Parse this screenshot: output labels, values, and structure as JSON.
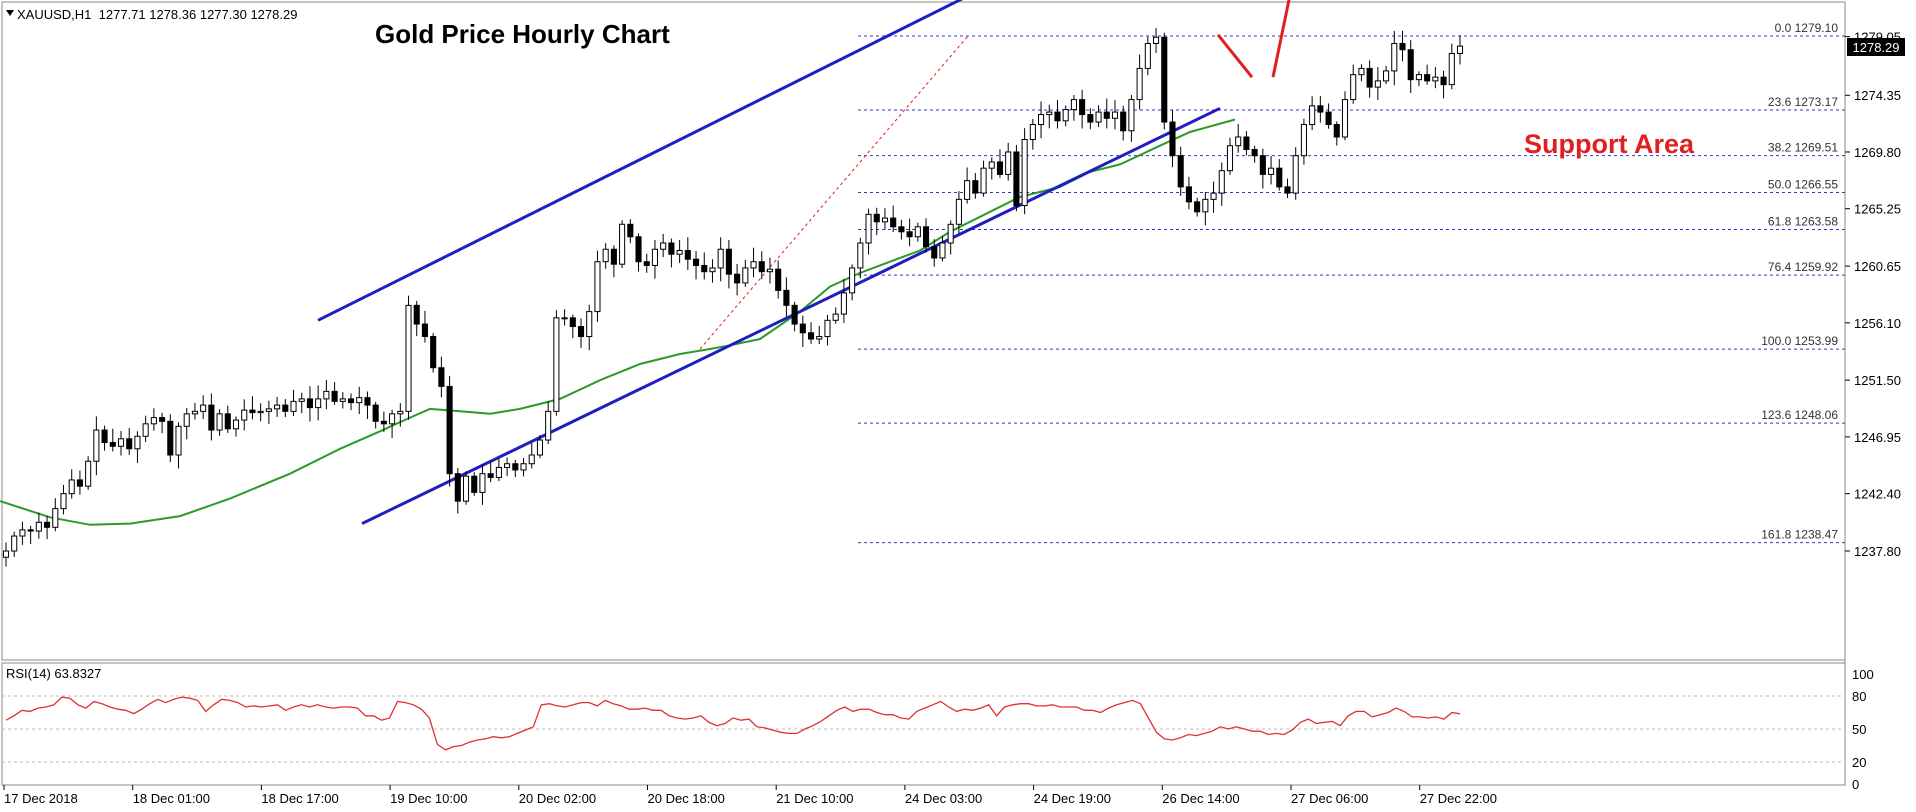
{
  "header": {
    "symbol_line": "XAUUSD,H1  1277.71 1278.36 1277.30 1278.29",
    "title": "Gold Price Hourly Chart",
    "current_price": "1278.29"
  },
  "annotations": {
    "support_label": "Support Area"
  },
  "colors": {
    "candle": "#000000",
    "channel": "#1f1fbf",
    "moving_average": "#2a9a2a",
    "fib_levels": "#3333cc",
    "annotation": "#e02020",
    "rsi": "#e03030",
    "grid": "#bdbdbd"
  },
  "chart_data": [
    {
      "type": "candlestick",
      "title": "Gold Price Hourly Chart",
      "instrument": "XAUUSD,H1",
      "last_ohlc": {
        "open": 1277.71,
        "high": 1278.36,
        "low": 1277.3,
        "close": 1278.29
      },
      "y_ticks": [
        "1279.05",
        "1274.35",
        "1269.80",
        "1265.25",
        "1260.65",
        "1256.10",
        "1251.50",
        "1246.95",
        "1242.40",
        "1237.80"
      ],
      "ylim": [
        1234.0,
        1282.8
      ],
      "x_ticks": [
        "17 Dec 2018",
        "18 Dec 01:00",
        "18 Dec 17:00",
        "19 Dec 10:00",
        "20 Dec 02:00",
        "20 Dec 18:00",
        "21 Dec 10:00",
        "24 Dec 03:00",
        "24 Dec 19:00",
        "26 Dec 14:00",
        "27 Dec 06:00",
        "27 Dec 22:00"
      ],
      "closes": [
        1237.8,
        1239.0,
        1239.5,
        1239.4,
        1240.1,
        1239.7,
        1241.2,
        1242.4,
        1243.5,
        1243.0,
        1245.0,
        1247.5,
        1246.5,
        1246.2,
        1246.8,
        1246.0,
        1247.0,
        1248.0,
        1248.5,
        1248.2,
        1245.5,
        1247.8,
        1248.8,
        1249.0,
        1249.5,
        1247.5,
        1248.8,
        1247.6,
        1248.3,
        1249.1,
        1248.9,
        1249.0,
        1249.2,
        1249.5,
        1249.0,
        1249.8,
        1250.0,
        1249.3,
        1250.0,
        1250.6,
        1249.8,
        1250.0,
        1249.7,
        1250.1,
        1249.5,
        1248.2,
        1248.0,
        1248.8,
        1249.0,
        1257.5,
        1256.0,
        1255.0,
        1252.5,
        1251.0,
        1244.0,
        1241.8,
        1243.8,
        1242.5,
        1244.0,
        1243.7,
        1244.5,
        1244.8,
        1244.3,
        1244.8,
        1245.5,
        1246.7,
        1249.0,
        1256.5,
        1256.5,
        1255.8,
        1255.0,
        1257.0,
        1261.0,
        1262.0,
        1260.8,
        1264.0,
        1263.0,
        1261.0,
        1260.7,
        1262.0,
        1262.5,
        1261.6,
        1261.9,
        1261.2,
        1260.7,
        1260.2,
        1260.5,
        1262.0,
        1260.0,
        1259.3,
        1260.5,
        1261.0,
        1260.2,
        1260.4,
        1258.7,
        1257.5,
        1256.0,
        1255.3,
        1254.8,
        1255.0,
        1256.3,
        1256.8,
        1258.5,
        1260.5,
        1262.5,
        1264.8,
        1264.2,
        1264.5,
        1263.8,
        1263.4,
        1263.0,
        1263.8,
        1262.2,
        1261.3,
        1262.5,
        1264.0,
        1266.0,
        1267.5,
        1266.5,
        1268.5,
        1269.0,
        1268.0,
        1269.8,
        1265.5,
        1270.8,
        1272.0,
        1272.8,
        1273.0,
        1272.3,
        1273.2,
        1274.0,
        1272.8,
        1272.2,
        1273.0,
        1272.5,
        1273.0,
        1271.5,
        1274.0,
        1276.5,
        1278.5,
        1279.0,
        1272.2,
        1269.5,
        1267.0,
        1265.8,
        1265.0,
        1266.0,
        1266.5,
        1268.3,
        1270.3,
        1271.0,
        1270.0,
        1269.5,
        1268.0,
        1268.5,
        1267.0,
        1266.5,
        1269.5,
        1272.0,
        1273.5,
        1273.0,
        1272.0,
        1271.0,
        1274.0,
        1276.0,
        1276.5,
        1275.0,
        1275.5,
        1276.3,
        1278.5,
        1278.0,
        1275.6,
        1276.0,
        1275.5,
        1275.8,
        1275.2,
        1277.7,
        1278.29
      ],
      "moving_average_points": [
        [
          0,
          1241.8
        ],
        [
          50,
          1240.5
        ],
        [
          90,
          1239.9
        ],
        [
          130,
          1240.0
        ],
        [
          180,
          1240.6
        ],
        [
          230,
          1242.0
        ],
        [
          290,
          1244.0
        ],
        [
          340,
          1246.0
        ],
        [
          380,
          1247.4
        ],
        [
          410,
          1248.5
        ],
        [
          430,
          1249.2
        ],
        [
          460,
          1249.0
        ],
        [
          490,
          1248.8
        ],
        [
          520,
          1249.2
        ],
        [
          560,
          1250.0
        ],
        [
          600,
          1251.5
        ],
        [
          640,
          1252.8
        ],
        [
          680,
          1253.6
        ],
        [
          710,
          1254.0
        ],
        [
          730,
          1254.3
        ],
        [
          760,
          1254.8
        ],
        [
          800,
          1257.0
        ],
        [
          830,
          1259.0
        ],
        [
          860,
          1260.1
        ],
        [
          890,
          1261.0
        ],
        [
          920,
          1261.9
        ],
        [
          950,
          1263.4
        ],
        [
          990,
          1265.0
        ],
        [
          1020,
          1266.2
        ],
        [
          1060,
          1267.0
        ],
        [
          1090,
          1268.2
        ],
        [
          1120,
          1268.8
        ],
        [
          1160,
          1270.3
        ],
        [
          1190,
          1271.4
        ],
        [
          1235,
          1272.4
        ]
      ],
      "fibonacci_levels": [
        {
          "label": "0.0 1279.10",
          "price": 1279.1
        },
        {
          "label": "23.6 1273.17",
          "price": 1273.17
        },
        {
          "label": "38.2 1269.51",
          "price": 1269.51
        },
        {
          "label": "50.0 1266.55",
          "price": 1266.55
        },
        {
          "label": "61.8 1263.58",
          "price": 1263.58
        },
        {
          "label": "76.4 1259.92",
          "price": 1259.92
        },
        {
          "label": "100.0 1253.99",
          "price": 1253.99
        },
        {
          "label": "123.6 1248.06",
          "price": 1248.06
        },
        {
          "label": "161.8 1238.47",
          "price": 1238.47
        }
      ],
      "upper_channel": [
        [
          318,
          1256.3
        ],
        [
          985,
          1283.0
        ]
      ],
      "lower_channel": [
        [
          362,
          1240.0
        ],
        [
          1220,
          1273.3
        ]
      ],
      "fib_anchor_line": [
        [
          700,
          1254.0
        ],
        [
          968,
          1279.1
        ]
      ],
      "red_arrow_segments": [
        [
          [
            1218,
            1279.2
          ],
          [
            1252,
            1275.8
          ]
        ],
        [
          [
            1273,
            1275.8
          ],
          [
            1289,
            1282.0
          ]
        ]
      ]
    },
    {
      "type": "line",
      "title": "RSI(14) 63.8327",
      "y_ticks": [
        "100",
        "80",
        "50",
        "20",
        "0"
      ],
      "levels": [
        80,
        50,
        20
      ],
      "ylim": [
        0,
        100
      ],
      "values": [
        58,
        62,
        67,
        66,
        69,
        70,
        72,
        79,
        78,
        72,
        69,
        75,
        73,
        70,
        68,
        67,
        64,
        68,
        73,
        77,
        74,
        77,
        79,
        78,
        76,
        66,
        72,
        77,
        76,
        74,
        70,
        71,
        70,
        71,
        72,
        67,
        70,
        72,
        70,
        72,
        70,
        69,
        70,
        70,
        69,
        62,
        62,
        58,
        60,
        75,
        74,
        72,
        68,
        60,
        36,
        31,
        34,
        35,
        38,
        40,
        41,
        43,
        42,
        43,
        46,
        49,
        52,
        72,
        73,
        71,
        70,
        72,
        74,
        74,
        71,
        76,
        73,
        71,
        68,
        68,
        69,
        67,
        67,
        62,
        60,
        59,
        60,
        62,
        56,
        53,
        55,
        60,
        58,
        59,
        52,
        51,
        49,
        47,
        46,
        46,
        50,
        53,
        57,
        62,
        67,
        70,
        66,
        68,
        68,
        65,
        63,
        63,
        60,
        59,
        66,
        69,
        72,
        75,
        70,
        66,
        68,
        67,
        69,
        72,
        62,
        70,
        72,
        73,
        73,
        71,
        71,
        72,
        70,
        70,
        70,
        67,
        67,
        65,
        69,
        72,
        74,
        76,
        73,
        60,
        47,
        41,
        40,
        42,
        45,
        44,
        46,
        48,
        52,
        50,
        52,
        50,
        48,
        48,
        45,
        46,
        45,
        49,
        56,
        59,
        55,
        56,
        57,
        53,
        62,
        66,
        66,
        61,
        63,
        65,
        69,
        66,
        61,
        61,
        60,
        61,
        59,
        65,
        63.8327
      ]
    }
  ]
}
